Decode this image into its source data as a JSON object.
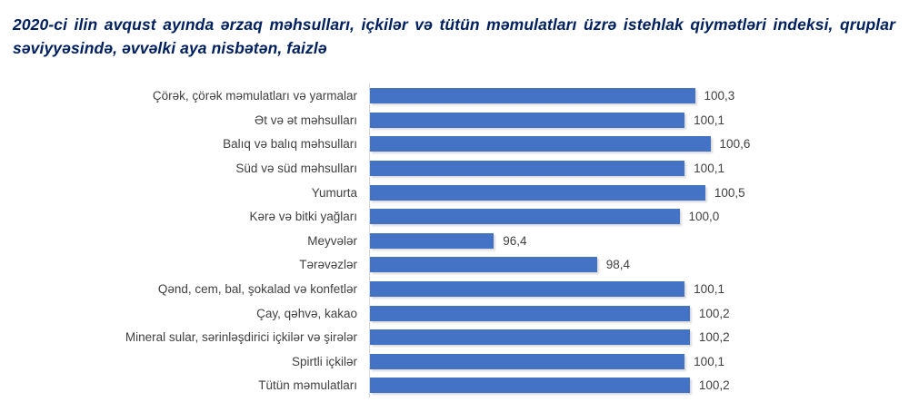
{
  "title": "2020-ci ilin avqust ayında ərzaq məhsulları, içkilər və tütün məmulatları üzrə istehlak qiymətləri indeksi, qruplar səviyyəsində, əvvəlki aya nisbətən, faizlə",
  "colors": {
    "bar": "#4472C4",
    "title_text": "#002060",
    "label_text": "#404040",
    "axis_line": "#D9D9D9"
  },
  "chart_data": {
    "type": "bar",
    "orientation": "horizontal",
    "title": "2020-ci ilin avqust ayında ərzaq məhsulları, içkilər və tütün məmulatları üzrə istehlak qiymətləri indeksi, qruplar səviyyəsində, əvvəlki aya nisbətən, faizlə",
    "categories": [
      "Çörək, çörək məmulatları  və yarmalar",
      "Ət və ət məhsulları",
      "Balıq və balıq məhsulları",
      "Süd və süd məhsulları",
      "Yumurta",
      "Kərə və bitki yağları",
      "Meyvələr",
      "Tərəvəzlər",
      "Qənd, cem, bal, şokalad və konfetlər",
      "Çay, qəhvə, kakao",
      "Mineral sular, sərinləşdirici içkilər və şirələr",
      "Spirtli içkilər",
      "Tütün məmulatları"
    ],
    "values": [
      100.3,
      100.1,
      100.6,
      100.1,
      100.5,
      100.0,
      96.4,
      98.4,
      100.1,
      100.2,
      100.2,
      100.1,
      100.2
    ],
    "value_labels": [
      "100,3",
      "100,1",
      "100,6",
      "100,1",
      "100,5",
      "100,0",
      "96,4",
      "98,4",
      "100,1",
      "100,2",
      "100,2",
      "100,1",
      "100,2"
    ],
    "xlabel": "",
    "ylabel": "",
    "xlim": [
      94,
      102
    ],
    "grid": false,
    "legend": "none",
    "data_labels": "outside-end"
  }
}
